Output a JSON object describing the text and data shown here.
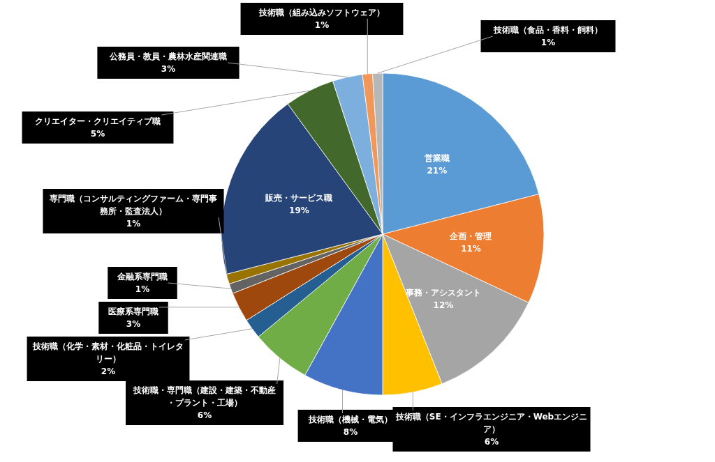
{
  "chart_data": {
    "type": "pie",
    "categories": [
      "営業職",
      "企画・管理",
      "事務・アシスタント",
      "技術職（SE・インフラエンジニア・Webエンジニア）",
      "技術職（機械・電気）",
      "技術職・専門職（建設・建築・不動産・プラント・工場）",
      "技術職（化学・素材・化粧品・トイレタリー）",
      "医療系専門職",
      "金融系専門職",
      "専門職（コンサルティングファーム・専門事務所・監査法人）",
      "販売・サービス職",
      "クリエイター・クリエイティブ職",
      "公務員・教員・農林水産関連職",
      "技術職（組み込みソフトウェア）",
      "技術職（食品・香料・飼料）"
    ],
    "values": [
      21,
      11,
      12,
      6,
      8,
      6,
      2,
      3,
      1,
      1,
      19,
      5,
      3,
      1,
      1
    ],
    "value_labels": [
      "21%",
      "11%",
      "12%",
      "6%",
      "8%",
      "6%",
      "2%",
      "3%",
      "1%",
      "1%",
      "19%",
      "5%",
      "3%",
      "1%",
      "1%"
    ],
    "colors": [
      "#5b9bd5",
      "#ed7d31",
      "#a5a5a5",
      "#ffc000",
      "#4472c4",
      "#70ad47",
      "#255e91",
      "#9e480e",
      "#636363",
      "#997300",
      "#264478",
      "#43682b",
      "#7cafdd",
      "#f1975a",
      "#b7b7b7"
    ]
  }
}
